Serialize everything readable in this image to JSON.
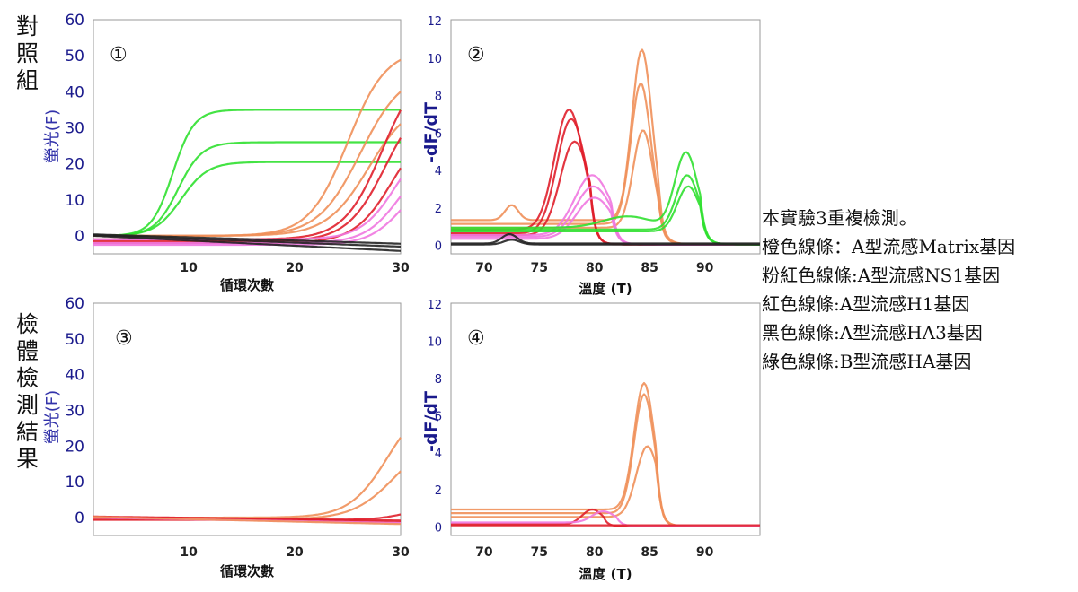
{
  "groups": {
    "control": "對照組",
    "sample": "檢體檢測結果"
  },
  "legend": {
    "intro": "本實驗3重複檢測。",
    "lines": [
      "橙色線條：A型流感Matrix基因",
      "粉紅色線條:A型流感NS1基因",
      "紅色線條:A型流感H1基因",
      "黑色線條:A型流感HA3基因",
      "綠色線條:B型流感HA基因"
    ]
  },
  "colors": {
    "orange": "#f0905a",
    "pink": "#f078e0",
    "red": "#e0202c",
    "black": "#222222",
    "green": "#30e030"
  },
  "chart_data": [
    {
      "panel": "①",
      "type": "line",
      "xlabel": "循環次數",
      "ylabel": "螢光(F)",
      "xlim": [
        1,
        30
      ],
      "ylim": [
        -5,
        60
      ],
      "xticks": [
        "10",
        "20",
        "30"
      ],
      "xtick_values": [
        10,
        20,
        30
      ],
      "yticks": [
        "0",
        "10",
        "20",
        "30",
        "40",
        "50",
        "60"
      ],
      "ytick_values": [
        0,
        10,
        20,
        30,
        40,
        50,
        60
      ],
      "series": [
        {
          "name": "綠色 1",
          "color": "green",
          "kind": "sig",
          "amp": 35,
          "mid": 8.5,
          "k": 1.0,
          "base": 0
        },
        {
          "name": "綠色 2",
          "color": "green",
          "kind": "sig",
          "amp": 26,
          "mid": 9.0,
          "k": 0.9,
          "base": 0
        },
        {
          "name": "綠色 3",
          "color": "green",
          "kind": "sig",
          "amp": 20.5,
          "mid": 9.3,
          "k": 0.8,
          "base": 0
        },
        {
          "name": "橙色 1",
          "color": "orange",
          "kind": "sig",
          "amp": 52,
          "mid": 25,
          "k": 0.55,
          "base": 0
        },
        {
          "name": "橙色 2",
          "color": "orange",
          "kind": "sig",
          "amp": 46,
          "mid": 26.2,
          "k": 0.5,
          "base": 0
        },
        {
          "name": "橙色 3",
          "color": "orange",
          "kind": "sig",
          "amp": 38,
          "mid": 27,
          "k": 0.5,
          "base": 0
        },
        {
          "name": "紅色 1",
          "color": "red",
          "kind": "sig",
          "amp": 50,
          "mid": 28.3,
          "k": 0.55,
          "base": -1
        },
        {
          "name": "紅色 2",
          "color": "red",
          "kind": "sig",
          "amp": 42,
          "mid": 28.6,
          "k": 0.55,
          "base": -1.5
        },
        {
          "name": "紅色 3",
          "color": "red",
          "kind": "sig",
          "amp": 35,
          "mid": 29.3,
          "k": 0.55,
          "base": -2
        },
        {
          "name": "粉紅 1",
          "color": "pink",
          "kind": "sig",
          "amp": 30,
          "mid": 29.6,
          "k": 0.6,
          "base": -1
        },
        {
          "name": "粉紅 2",
          "color": "pink",
          "kind": "sig",
          "amp": 26,
          "mid": 30.0,
          "k": 0.6,
          "base": -2
        },
        {
          "name": "粉紅 3",
          "color": "pink",
          "kind": "sig",
          "amp": 22,
          "mid": 30.4,
          "k": 0.6,
          "base": -2.5
        },
        {
          "name": "黑色 1",
          "color": "black",
          "kind": "lin",
          "start": 0.4,
          "end": -2.2
        },
        {
          "name": "黑色 2",
          "color": "black",
          "kind": "lin",
          "start": 0.2,
          "end": -3.0
        },
        {
          "name": "黑色 3",
          "color": "black",
          "kind": "lin",
          "start": 0.0,
          "end": -4.2
        }
      ]
    },
    {
      "panel": "②",
      "type": "line",
      "xlabel": "溫度 (T)",
      "ylabel": "-dF/dT",
      "xlim": [
        67,
        95
      ],
      "ylim": [
        -0.5,
        12
      ],
      "xticks": [
        "70",
        "75",
        "80",
        "85",
        "90"
      ],
      "xtick_values": [
        70,
        75,
        80,
        85,
        90
      ],
      "yticks": [
        "0",
        "2",
        "4",
        "6",
        "8",
        "10",
        "12"
      ],
      "ytick_values": [
        0,
        2,
        4,
        6,
        8,
        10,
        12
      ],
      "series": [
        {
          "name": "橙色 1",
          "color": "orange",
          "base": 1.3,
          "cut": 85.8,
          "peaks": [
            [
              84.3,
              9.1,
              0.9
            ],
            [
              72.5,
              0.8,
              0.6
            ]
          ]
        },
        {
          "name": "橙色 2",
          "color": "orange",
          "base": 1.1,
          "cut": 85.8,
          "peaks": [
            [
              84.2,
              7.5,
              0.9
            ]
          ]
        },
        {
          "name": "橙色 3",
          "color": "orange",
          "base": 0.9,
          "cut": 85.8,
          "peaks": [
            [
              84.4,
              5.2,
              0.9
            ]
          ]
        },
        {
          "name": "紅色 1",
          "color": "red",
          "base": 0.8,
          "cut": 79.6,
          "peaks": [
            [
              77.7,
              6.4,
              1.3
            ]
          ]
        },
        {
          "name": "紅色 2",
          "color": "red",
          "base": 0.6,
          "cut": 79.6,
          "peaks": [
            [
              77.9,
              6.1,
              1.3
            ]
          ]
        },
        {
          "name": "紅色 3",
          "color": "red",
          "base": 0.5,
          "cut": 79.6,
          "peaks": [
            [
              78.2,
              5.0,
              1.3
            ]
          ]
        },
        {
          "name": "粉紅 1",
          "color": "pink",
          "base": 0.5,
          "cut": 81.5,
          "peaks": [
            [
              79.8,
              3.2,
              1.6
            ]
          ]
        },
        {
          "name": "粉紅 2",
          "color": "pink",
          "base": 0.4,
          "cut": 81.5,
          "peaks": [
            [
              79.9,
              2.7,
              1.6
            ]
          ]
        },
        {
          "name": "粉紅 3",
          "color": "pink",
          "base": 0.3,
          "cut": 81.5,
          "peaks": [
            [
              80.0,
              2.2,
              1.6
            ]
          ]
        },
        {
          "name": "綠色 1",
          "color": "green",
          "base": 0.9,
          "cut": 89.6,
          "peaks": [
            [
              88.3,
              4.0,
              1.0
            ],
            [
              83.0,
              0.6,
              2.2
            ]
          ]
        },
        {
          "name": "綠色 2",
          "color": "green",
          "base": 0.8,
          "cut": 89.6,
          "peaks": [
            [
              88.4,
              2.9,
              1.0
            ]
          ]
        },
        {
          "name": "綠色 3",
          "color": "green",
          "base": 0.7,
          "cut": 89.6,
          "peaks": [
            [
              88.5,
              2.4,
              1.0
            ]
          ]
        },
        {
          "name": "黑色 1",
          "color": "black",
          "base": 0.05,
          "cut": 95,
          "peaks": [
            [
              72.3,
              0.5,
              0.7
            ]
          ]
        },
        {
          "name": "黑色 2",
          "color": "black",
          "base": 0.0,
          "cut": 95,
          "peaks": [
            [
              72.5,
              0.25,
              0.7
            ]
          ]
        }
      ]
    },
    {
      "panel": "③",
      "type": "line",
      "xlabel": "循環次數",
      "ylabel": "螢光(F)",
      "xlim": [
        1,
        30
      ],
      "ylim": [
        -5,
        60
      ],
      "xticks": [
        "10",
        "20",
        "30"
      ],
      "xtick_values": [
        10,
        20,
        30
      ],
      "yticks": [
        "0",
        "10",
        "20",
        "30",
        "40",
        "50",
        "60"
      ],
      "ytick_values": [
        0,
        10,
        20,
        30,
        40,
        50,
        60
      ],
      "series": [
        {
          "name": "橙色 1",
          "color": "orange",
          "kind": "sig",
          "amp": 34,
          "mid": 28.8,
          "k": 0.55,
          "base": 0
        },
        {
          "name": "橙色 2",
          "color": "orange",
          "kind": "sig",
          "amp": 24,
          "mid": 29.5,
          "k": 0.5,
          "base": -0.5
        },
        {
          "name": "紅色 1",
          "color": "red",
          "kind": "sig",
          "amp": 3,
          "mid": 30,
          "k": 0.8,
          "base": -0.6
        },
        {
          "name": "紅色 2",
          "color": "red",
          "kind": "lin",
          "start": 0.3,
          "end": -0.8
        },
        {
          "name": "紅色 3",
          "color": "red",
          "kind": "lin",
          "start": 0.1,
          "end": -1.2
        },
        {
          "name": "粉紅 1",
          "color": "pink",
          "kind": "lin",
          "start": 0.0,
          "end": -1.5
        },
        {
          "name": "橙色 3",
          "color": "orange",
          "kind": "lin",
          "start": 0.2,
          "end": -1.8
        }
      ]
    },
    {
      "panel": "④",
      "type": "line",
      "xlabel": "溫度 (T)",
      "ylabel": "-dF/dT",
      "xlim": [
        67,
        95
      ],
      "ylim": [
        -0.5,
        12
      ],
      "xticks": [
        "70",
        "75",
        "80",
        "85",
        "90"
      ],
      "xtick_values": [
        70,
        75,
        80,
        85,
        90
      ],
      "yticks": [
        "0",
        "2",
        "4",
        "6",
        "8",
        "10",
        "12"
      ],
      "ytick_values": [
        0,
        2,
        4,
        6,
        8,
        10,
        12
      ],
      "series": [
        {
          "name": "橙色 1",
          "color": "orange",
          "base": 0.9,
          "cut": 85.6,
          "peaks": [
            [
              84.5,
              6.8,
              0.9
            ]
          ]
        },
        {
          "name": "橙色 2",
          "color": "orange",
          "base": 0.7,
          "cut": 85.6,
          "peaks": [
            [
              84.5,
              6.4,
              0.9
            ]
          ]
        },
        {
          "name": "橙色 3",
          "color": "orange",
          "base": 0.5,
          "cut": 85.6,
          "peaks": [
            [
              84.8,
              3.8,
              1.0
            ]
          ]
        },
        {
          "name": "紅色 1",
          "color": "red",
          "base": 0.1,
          "cut": 80.8,
          "peaks": [
            [
              79.8,
              0.8,
              0.9
            ]
          ]
        },
        {
          "name": "粉紅 1",
          "color": "pink",
          "base": 0.2,
          "cut": 82.0,
          "peaks": [
            [
              80.8,
              0.6,
              1.0
            ]
          ]
        },
        {
          "name": "紅色 2",
          "color": "red",
          "base": 0.05,
          "cut": 95,
          "peaks": []
        }
      ]
    }
  ]
}
